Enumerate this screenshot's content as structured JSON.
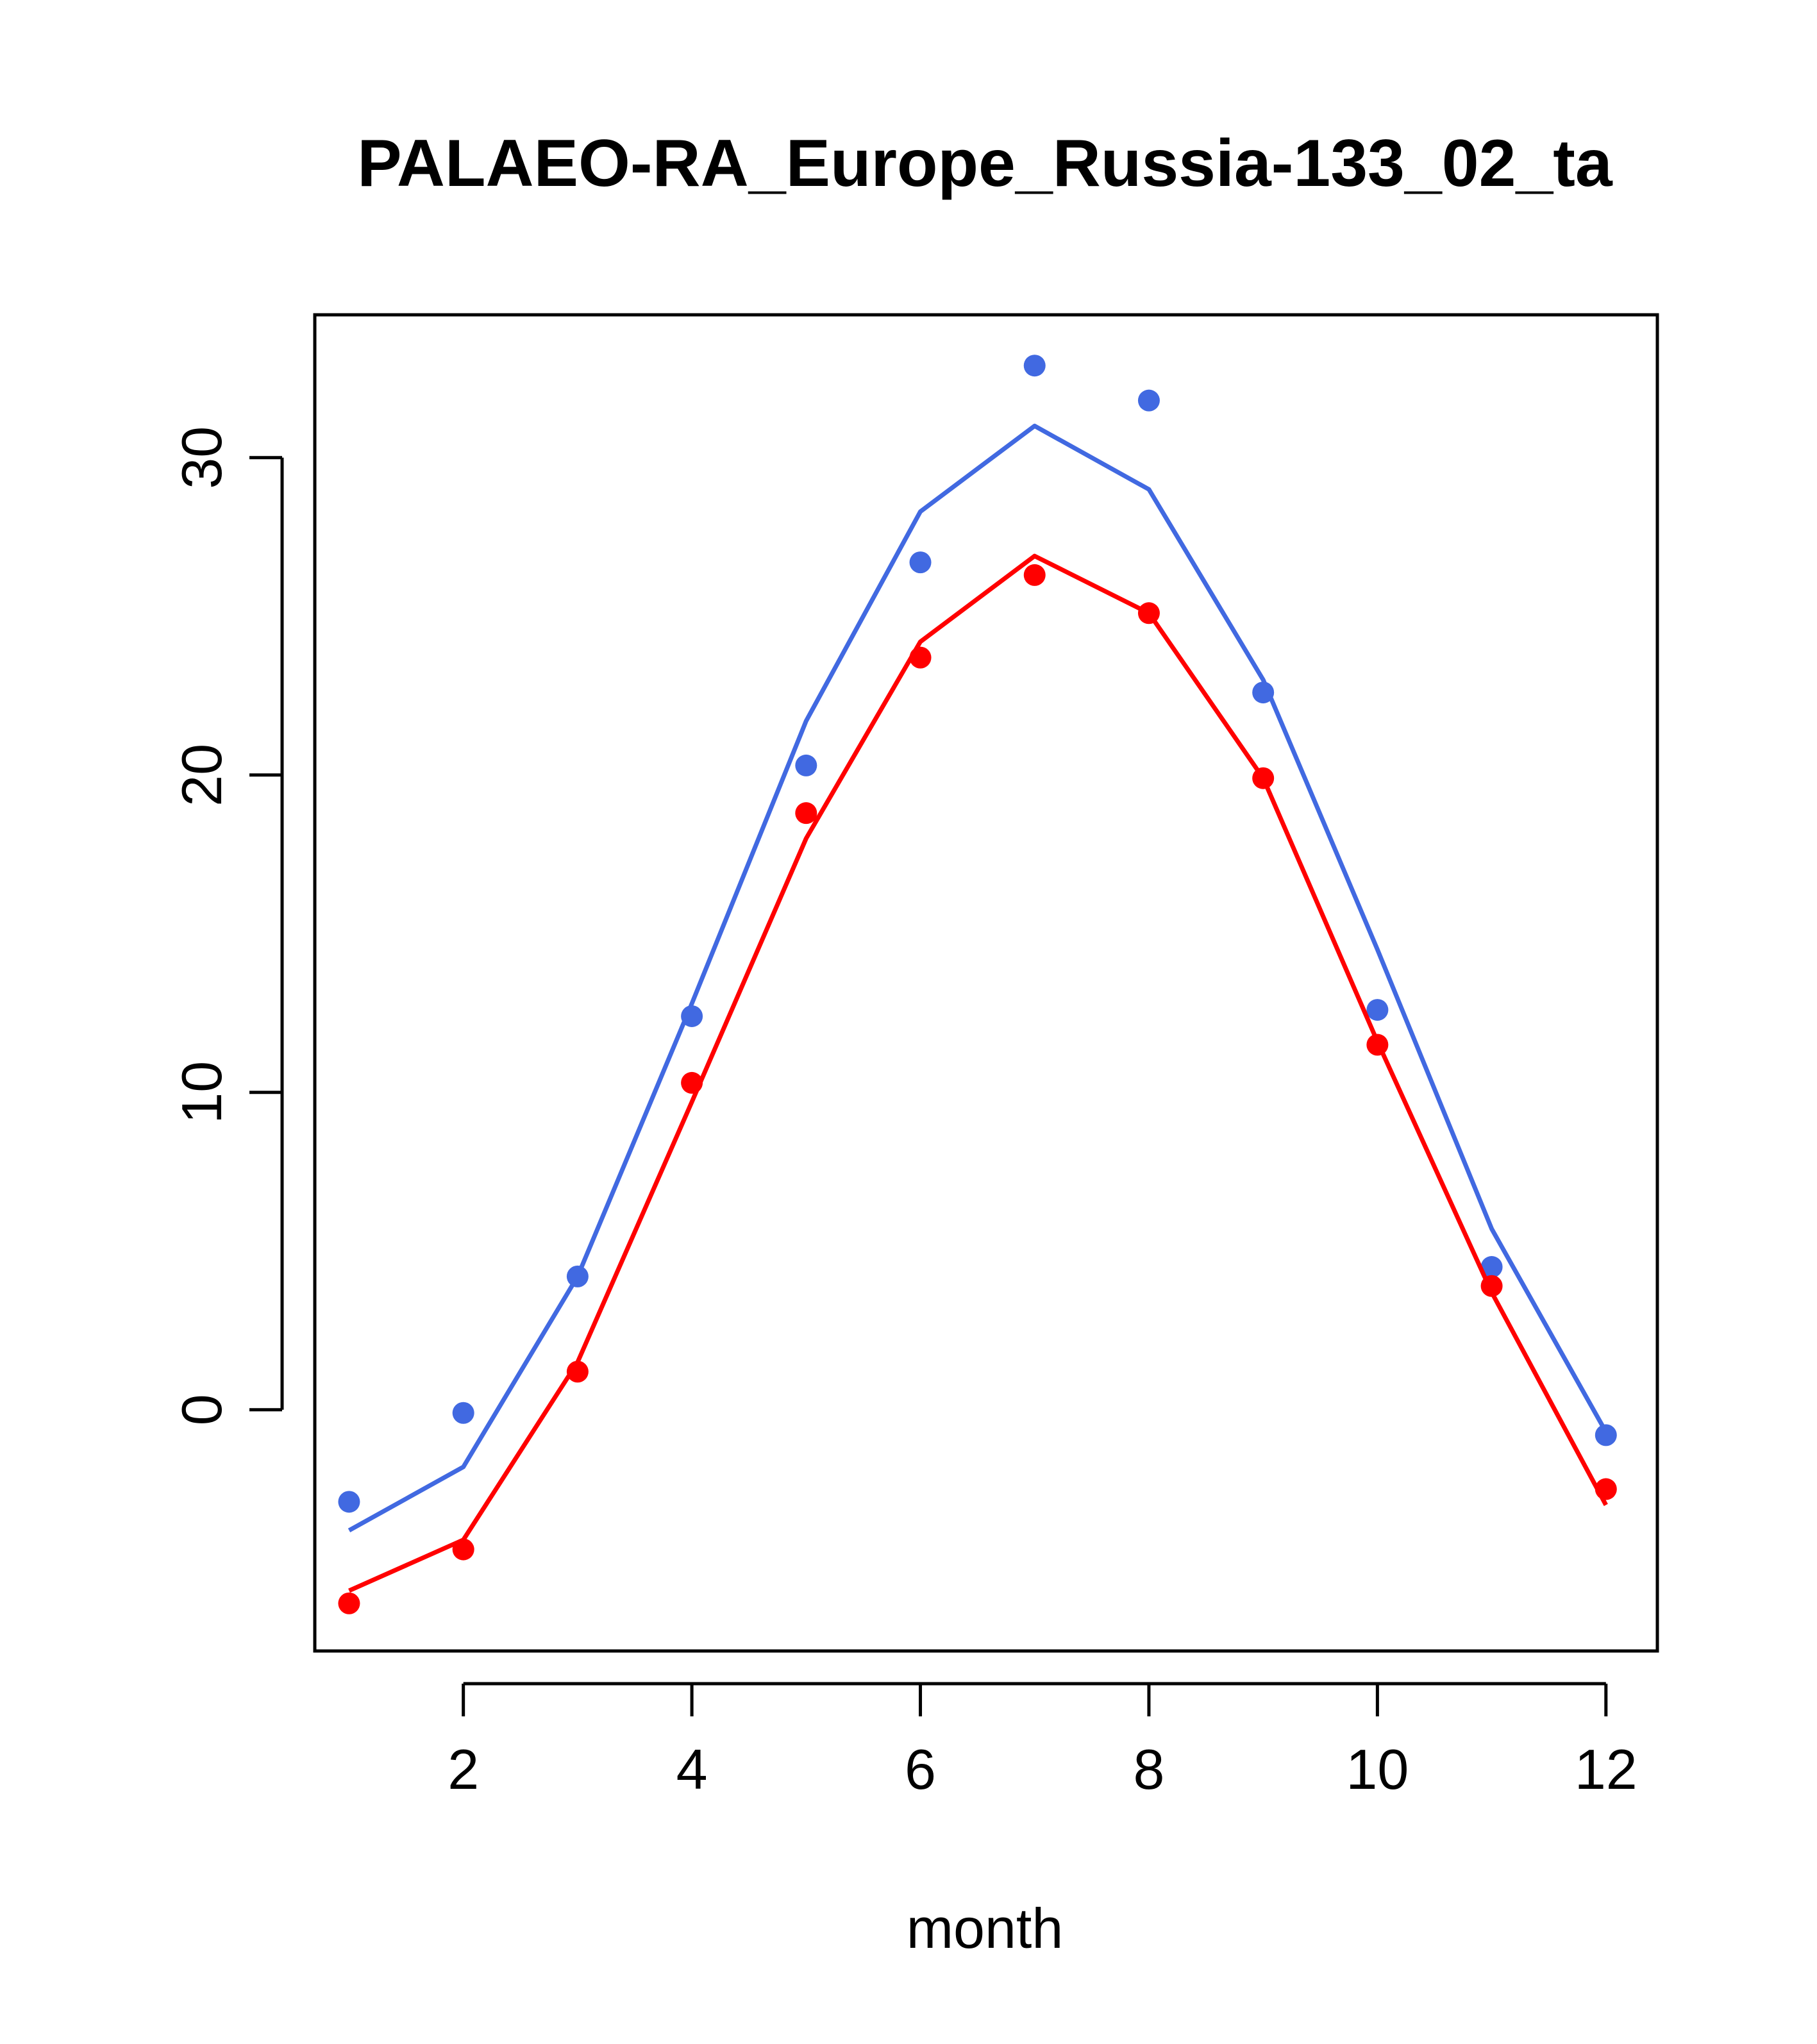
{
  "chart_data": {
    "type": "line",
    "title": "PALAEO-RA_Europe_Russia-133_02_ta",
    "xlabel": "month",
    "ylabel": "",
    "xlim": [
      0.7,
      12.45
    ],
    "ylim": [
      -7.6,
      34.5
    ],
    "x_ticks": [
      2,
      4,
      6,
      8,
      10,
      12
    ],
    "y_ticks": [
      0,
      10,
      20,
      30
    ],
    "grid": false,
    "legend": "none",
    "x": [
      1,
      2,
      3,
      4,
      5,
      6,
      7,
      8,
      9,
      10,
      11,
      12
    ],
    "series": [
      {
        "name": "blue",
        "color": "#4169E1",
        "line": [
          -3.8,
          -1.8,
          4.2,
          12.8,
          21.7,
          28.3,
          31.0,
          29.0,
          23.0,
          14.5,
          5.7,
          -0.7
        ],
        "points": [
          -2.9,
          -0.1,
          4.2,
          12.4,
          20.3,
          26.7,
          32.9,
          31.8,
          22.6,
          12.6,
          4.5,
          -0.8
        ]
      },
      {
        "name": "red",
        "color": "#FF0000",
        "line": [
          -5.7,
          -4.1,
          1.5,
          9.7,
          18.0,
          24.2,
          26.9,
          25.1,
          19.9,
          11.6,
          3.7,
          -3.0
        ],
        "points": [
          -6.1,
          -4.4,
          1.2,
          10.3,
          18.8,
          23.7,
          26.3,
          25.1,
          19.9,
          11.5,
          3.9,
          -2.5
        ]
      }
    ]
  }
}
